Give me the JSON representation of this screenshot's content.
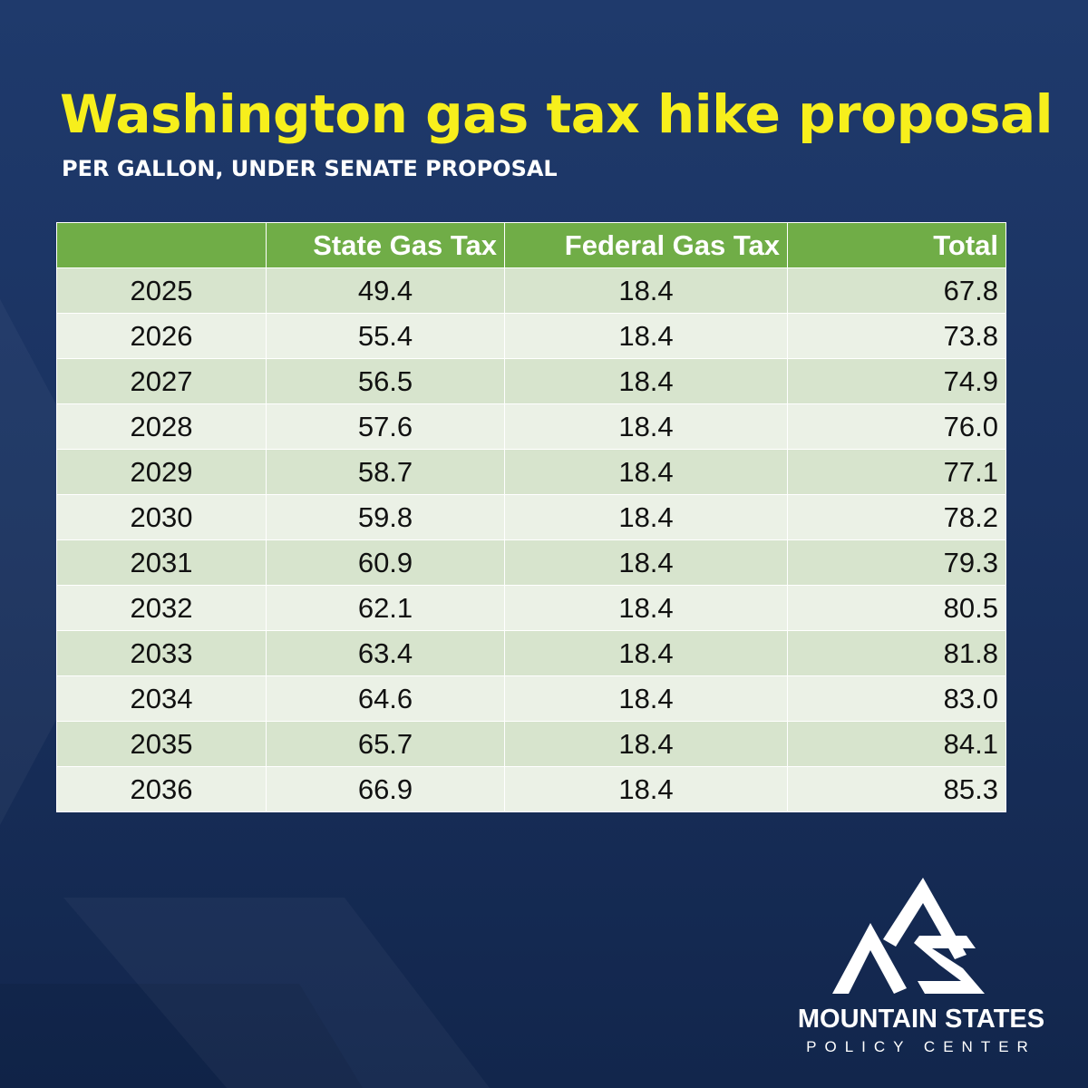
{
  "title": "Washington gas tax hike proposal",
  "subtitle": "PER GALLON, UNDER SENATE PROPOSAL",
  "chart_data": {
    "type": "table",
    "title": "Washington gas tax hike proposal",
    "subtitle": "PER GALLON, UNDER SENATE PROPOSAL",
    "columns": [
      "",
      "State Gas Tax",
      "Federal Gas Tax",
      "Total"
    ],
    "rows": [
      [
        "2025",
        "49.4",
        "18.4",
        "67.8"
      ],
      [
        "2026",
        "55.4",
        "18.4",
        "73.8"
      ],
      [
        "2027",
        "56.5",
        "18.4",
        "74.9"
      ],
      [
        "2028",
        "57.6",
        "18.4",
        "76.0"
      ],
      [
        "2029",
        "58.7",
        "18.4",
        "77.1"
      ],
      [
        "2030",
        "59.8",
        "18.4",
        "78.2"
      ],
      [
        "2031",
        "60.9",
        "18.4",
        "79.3"
      ],
      [
        "2032",
        "62.1",
        "18.4",
        "80.5"
      ],
      [
        "2033",
        "63.4",
        "18.4",
        "81.8"
      ],
      [
        "2034",
        "64.6",
        "18.4",
        "83.0"
      ],
      [
        "2035",
        "65.7",
        "18.4",
        "84.1"
      ],
      [
        "2036",
        "66.9",
        "18.4",
        "85.3"
      ]
    ]
  },
  "logo": {
    "name": "MOUNTAIN STATES",
    "sub": "POLICY CENTER",
    "mark_icon": "mountain-ms-logo-icon"
  },
  "colors": {
    "background_top": "#1f3a6c",
    "background_bottom": "#12264c",
    "title": "#f7ef1c",
    "header_bg": "#70ad47",
    "row_dark": "#d7e4cd",
    "row_light": "#ebf1e6"
  }
}
